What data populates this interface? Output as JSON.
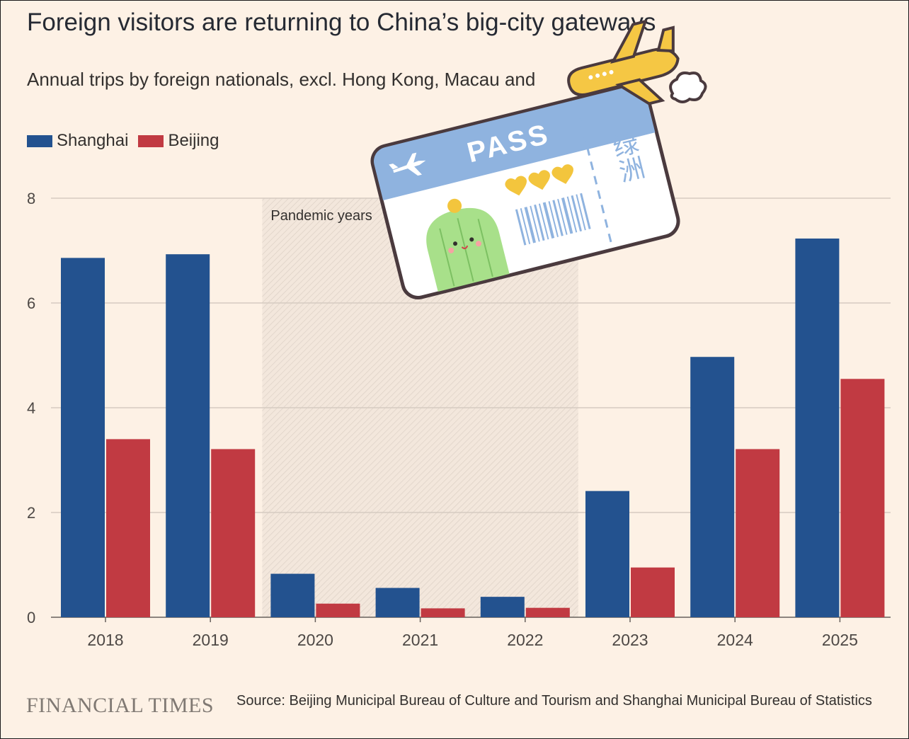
{
  "title": "Foreign visitors are returning to China’s big-city gateways",
  "subtitle": "Annual trips by foreign nationals, excl. Hong Kong, Macau and",
  "legend": [
    {
      "name": "Shanghai",
      "color": "#23528f"
    },
    {
      "name": "Beijing",
      "color": "#c13a42"
    }
  ],
  "annotation": "Pandemic years",
  "brand": "FINANCIAL TIMES",
  "source": "Source: Beijing Municipal Bureau of Culture and Tourism and Shanghai Municipal Bureau of Statistics",
  "sticker": {
    "pass_label": "PASS",
    "side_text": "绿洲",
    "icons": [
      "airplane-icon",
      "ticket-plane-icon",
      "cactus-icon",
      "heart-icon",
      "barcode-icon"
    ]
  },
  "chart_data": {
    "type": "bar",
    "categories": [
      "2018",
      "2019",
      "2020",
      "2021",
      "2022",
      "2023",
      "2024",
      "2025"
    ],
    "series": [
      {
        "name": "Shanghai",
        "color": "#23528f",
        "values": [
          6.86,
          6.93,
          0.83,
          0.56,
          0.39,
          2.41,
          4.97,
          7.23
        ]
      },
      {
        "name": "Beijing",
        "color": "#c13a42",
        "values": [
          3.4,
          3.21,
          0.26,
          0.17,
          0.18,
          0.95,
          3.21,
          4.55
        ]
      }
    ],
    "ylim": [
      0,
      8
    ],
    "yticks": [
      0,
      2,
      4,
      6,
      8
    ],
    "grid": true,
    "legend_position": "top-left",
    "shaded_range": {
      "from": "2020",
      "to": "2022",
      "label": "Pandemic years"
    }
  }
}
